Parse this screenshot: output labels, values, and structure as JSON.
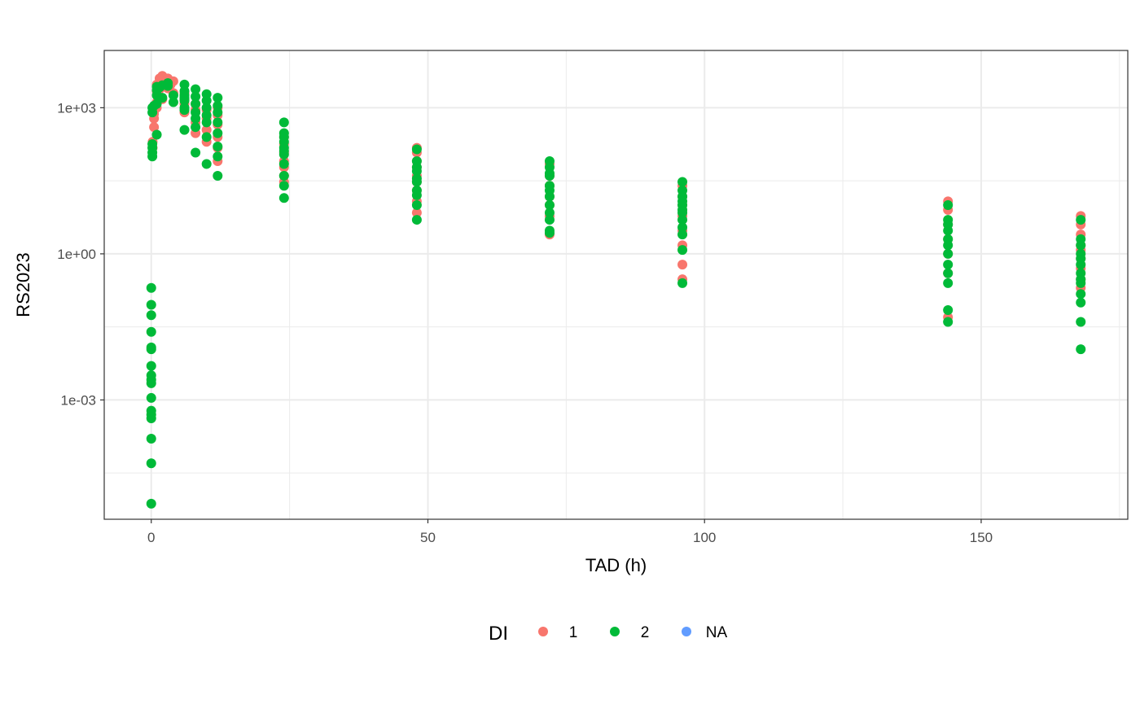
{
  "chart_data": {
    "type": "scatter",
    "title": "",
    "xlabel": "TAD (h)",
    "ylabel": "RS2023",
    "xlim": [
      -8.5,
      176.5
    ],
    "ylim": [
      3.55e-06,
      15000
    ],
    "y_scale": "log10",
    "x_ticks": [
      0,
      50,
      100,
      150
    ],
    "x_tick_labels": [
      "0",
      "50",
      "100",
      "150"
    ],
    "y_ticks": [
      0.001,
      1,
      1000
    ],
    "y_tick_labels": [
      "1e-03",
      "1e+00",
      "1e+03"
    ],
    "grid": true,
    "legend": {
      "title": "DI",
      "position": "bottom",
      "entries": [
        {
          "label": "1",
          "color": "#F8766D"
        },
        {
          "label": "2",
          "color": "#00BA38"
        },
        {
          "label": "NA",
          "color": "#619CFF"
        }
      ]
    },
    "series": [
      {
        "name": "1",
        "color": "#F8766D",
        "points": [
          [
            0.25,
            150
          ],
          [
            0.25,
            200
          ],
          [
            0.5,
            400
          ],
          [
            0.5,
            600
          ],
          [
            0.5,
            750
          ],
          [
            0.5,
            900
          ],
          [
            1,
            1000
          ],
          [
            1,
            1300
          ],
          [
            1,
            2200
          ],
          [
            1,
            3000
          ],
          [
            1.5,
            2400
          ],
          [
            1.5,
            4000
          ],
          [
            2,
            1500
          ],
          [
            2,
            3000
          ],
          [
            2,
            4500
          ],
          [
            2.5,
            3500
          ],
          [
            3,
            2500
          ],
          [
            3,
            4000
          ],
          [
            3.5,
            3000
          ],
          [
            4,
            3500
          ],
          [
            4,
            2000
          ],
          [
            6,
            800
          ],
          [
            6,
            1200
          ],
          [
            6,
            1500
          ],
          [
            6,
            2000
          ],
          [
            8,
            300
          ],
          [
            8,
            500
          ],
          [
            8,
            900
          ],
          [
            8,
            1200
          ],
          [
            10,
            200
          ],
          [
            10,
            350
          ],
          [
            10,
            600
          ],
          [
            10,
            900
          ],
          [
            12,
            80
          ],
          [
            12,
            150
          ],
          [
            12,
            250
          ],
          [
            12,
            450
          ],
          [
            12,
            700
          ],
          [
            12,
            1000
          ],
          [
            24,
            30
          ],
          [
            24,
            40
          ],
          [
            24,
            60
          ],
          [
            24,
            80
          ],
          [
            24,
            120
          ],
          [
            24,
            180
          ],
          [
            24,
            250
          ],
          [
            48,
            12
          ],
          [
            48,
            20
          ],
          [
            48,
            30
          ],
          [
            48,
            40
          ],
          [
            48,
            60
          ],
          [
            48,
            80
          ],
          [
            48,
            120
          ],
          [
            48,
            150
          ],
          [
            48,
            7
          ],
          [
            72,
            2.5
          ],
          [
            72,
            6
          ],
          [
            72,
            10
          ],
          [
            72,
            15
          ],
          [
            72,
            25
          ],
          [
            72,
            40
          ],
          [
            72,
            70
          ],
          [
            96,
            0.6
          ],
          [
            96,
            1.5
          ],
          [
            96,
            3
          ],
          [
            96,
            6
          ],
          [
            96,
            10
          ],
          [
            96,
            15
          ],
          [
            96,
            25
          ],
          [
            96,
            0.3
          ],
          [
            144,
            0.05
          ],
          [
            144,
            0.4
          ],
          [
            144,
            1
          ],
          [
            144,
            2
          ],
          [
            144,
            4
          ],
          [
            144,
            8
          ],
          [
            144,
            12
          ],
          [
            168,
            0.2
          ],
          [
            168,
            0.3
          ],
          [
            168,
            0.5
          ],
          [
            168,
            0.8
          ],
          [
            168,
            1.2
          ],
          [
            168,
            1.5
          ],
          [
            168,
            2.5
          ],
          [
            168,
            4
          ],
          [
            168,
            6
          ]
        ]
      },
      {
        "name": "2",
        "color": "#00BA38",
        "points": [
          [
            0,
            0.2
          ],
          [
            0,
            0.09
          ],
          [
            0,
            0.055
          ],
          [
            0,
            0.025
          ],
          [
            0,
            0.012
          ],
          [
            0,
            0.011
          ],
          [
            0,
            0.005
          ],
          [
            0,
            0.0032
          ],
          [
            0,
            0.0026
          ],
          [
            0,
            0.0022
          ],
          [
            0,
            0.0011
          ],
          [
            0,
            0.0006
          ],
          [
            0,
            0.0005
          ],
          [
            0,
            0.00042
          ],
          [
            0,
            0.00016
          ],
          [
            0,
            5e-05
          ],
          [
            0,
            7.4e-06
          ],
          [
            0.2,
            100
          ],
          [
            0.2,
            120
          ],
          [
            0.2,
            150
          ],
          [
            0.2,
            180
          ],
          [
            0.2,
            800
          ],
          [
            0.2,
            1000
          ],
          [
            0.5,
            1100
          ],
          [
            1,
            1200
          ],
          [
            1,
            1800
          ],
          [
            1,
            2300
          ],
          [
            1,
            2700
          ],
          [
            1,
            280
          ],
          [
            1.5,
            2600
          ],
          [
            2,
            2900
          ],
          [
            2,
            1600
          ],
          [
            3,
            3200
          ],
          [
            3,
            2800
          ],
          [
            4,
            1800
          ],
          [
            4,
            1300
          ],
          [
            6,
            1800
          ],
          [
            6,
            3000
          ],
          [
            6,
            2200
          ],
          [
            6,
            1600
          ],
          [
            6,
            900
          ],
          [
            6,
            1400
          ],
          [
            6,
            1000
          ],
          [
            6,
            350
          ],
          [
            8,
            2400
          ],
          [
            8,
            1700
          ],
          [
            8,
            1200
          ],
          [
            8,
            800
          ],
          [
            8,
            600
          ],
          [
            8,
            400
          ],
          [
            8,
            120
          ],
          [
            10,
            1900
          ],
          [
            10,
            1400
          ],
          [
            10,
            1000
          ],
          [
            10,
            700
          ],
          [
            10,
            500
          ],
          [
            10,
            250
          ],
          [
            10,
            70
          ],
          [
            12,
            1600
          ],
          [
            12,
            1100
          ],
          [
            12,
            800
          ],
          [
            12,
            500
          ],
          [
            12,
            300
          ],
          [
            12,
            160
          ],
          [
            12,
            100
          ],
          [
            12,
            40
          ],
          [
            24,
            500
          ],
          [
            24,
            300
          ],
          [
            24,
            250
          ],
          [
            24,
            200
          ],
          [
            24,
            150
          ],
          [
            24,
            130
          ],
          [
            24,
            110
          ],
          [
            24,
            70
          ],
          [
            24,
            40
          ],
          [
            24,
            25
          ],
          [
            24,
            14
          ],
          [
            48,
            140
          ],
          [
            48,
            80
          ],
          [
            48,
            60
          ],
          [
            48,
            50
          ],
          [
            48,
            35
          ],
          [
            48,
            30
          ],
          [
            48,
            20
          ],
          [
            48,
            16
          ],
          [
            48,
            10
          ],
          [
            48,
            5
          ],
          [
            72,
            80
          ],
          [
            72,
            60
          ],
          [
            72,
            45
          ],
          [
            72,
            40
          ],
          [
            72,
            25
          ],
          [
            72,
            20
          ],
          [
            72,
            15
          ],
          [
            72,
            10
          ],
          [
            72,
            7
          ],
          [
            72,
            5
          ],
          [
            72,
            3
          ],
          [
            72,
            2.7
          ],
          [
            96,
            30
          ],
          [
            96,
            20
          ],
          [
            96,
            15
          ],
          [
            96,
            12
          ],
          [
            96,
            10
          ],
          [
            96,
            8
          ],
          [
            96,
            7
          ],
          [
            96,
            5
          ],
          [
            96,
            3.5
          ],
          [
            96,
            2.5
          ],
          [
            96,
            1.2
          ],
          [
            96,
            0.25
          ],
          [
            144,
            10
          ],
          [
            144,
            5
          ],
          [
            144,
            4
          ],
          [
            144,
            3
          ],
          [
            144,
            2
          ],
          [
            144,
            1.5
          ],
          [
            144,
            1
          ],
          [
            144,
            0.6
          ],
          [
            144,
            0.4
          ],
          [
            144,
            0.25
          ],
          [
            144,
            0.07
          ],
          [
            144,
            0.04
          ],
          [
            168,
            5
          ],
          [
            168,
            2
          ],
          [
            168,
            1.5
          ],
          [
            168,
            1
          ],
          [
            168,
            0.8
          ],
          [
            168,
            0.6
          ],
          [
            168,
            0.4
          ],
          [
            168,
            0.3
          ],
          [
            168,
            0.25
          ],
          [
            168,
            0.15
          ],
          [
            168,
            0.1
          ],
          [
            168,
            0.04
          ],
          [
            168,
            0.011
          ]
        ]
      }
    ]
  }
}
